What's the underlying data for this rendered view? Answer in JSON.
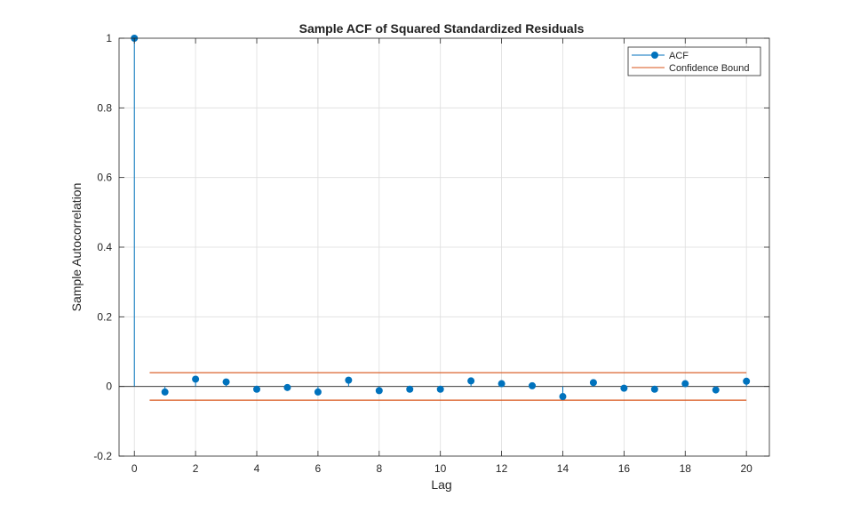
{
  "chart_data": {
    "type": "stem",
    "title": "Sample ACF of Squared Standardized Residuals",
    "xlabel": "Lag",
    "ylabel": "Sample Autocorrelation",
    "xlim": [
      -0.5,
      20.75
    ],
    "ylim": [
      -0.2,
      1
    ],
    "x_ticks": [
      "0",
      "2",
      "4",
      "6",
      "8",
      "10",
      "12",
      "14",
      "16",
      "18",
      "20"
    ],
    "y_ticks": [
      "-0.2",
      "0",
      "0.2",
      "0.4",
      "0.6",
      "0.8",
      "1"
    ],
    "grid": true,
    "legend": {
      "placement": "top-right",
      "entries": [
        "ACF",
        "Confidence Bound"
      ]
    },
    "series": [
      {
        "name": "ACF",
        "color": "#0072BD",
        "x": [
          0,
          1,
          2,
          3,
          4,
          5,
          6,
          7,
          8,
          9,
          10,
          11,
          12,
          13,
          14,
          15,
          16,
          17,
          18,
          19,
          20
        ],
        "values": [
          1.0,
          -0.016,
          0.021,
          0.013,
          -0.008,
          -0.003,
          -0.016,
          0.018,
          -0.012,
          -0.008,
          -0.008,
          0.016,
          0.008,
          0.002,
          -0.029,
          0.011,
          -0.005,
          -0.008,
          0.008,
          -0.01,
          0.015
        ]
      },
      {
        "name": "Confidence Bound",
        "color": "#D95319",
        "x": [
          0.5,
          20
        ],
        "upper": 0.0395,
        "lower": -0.0395
      }
    ]
  }
}
